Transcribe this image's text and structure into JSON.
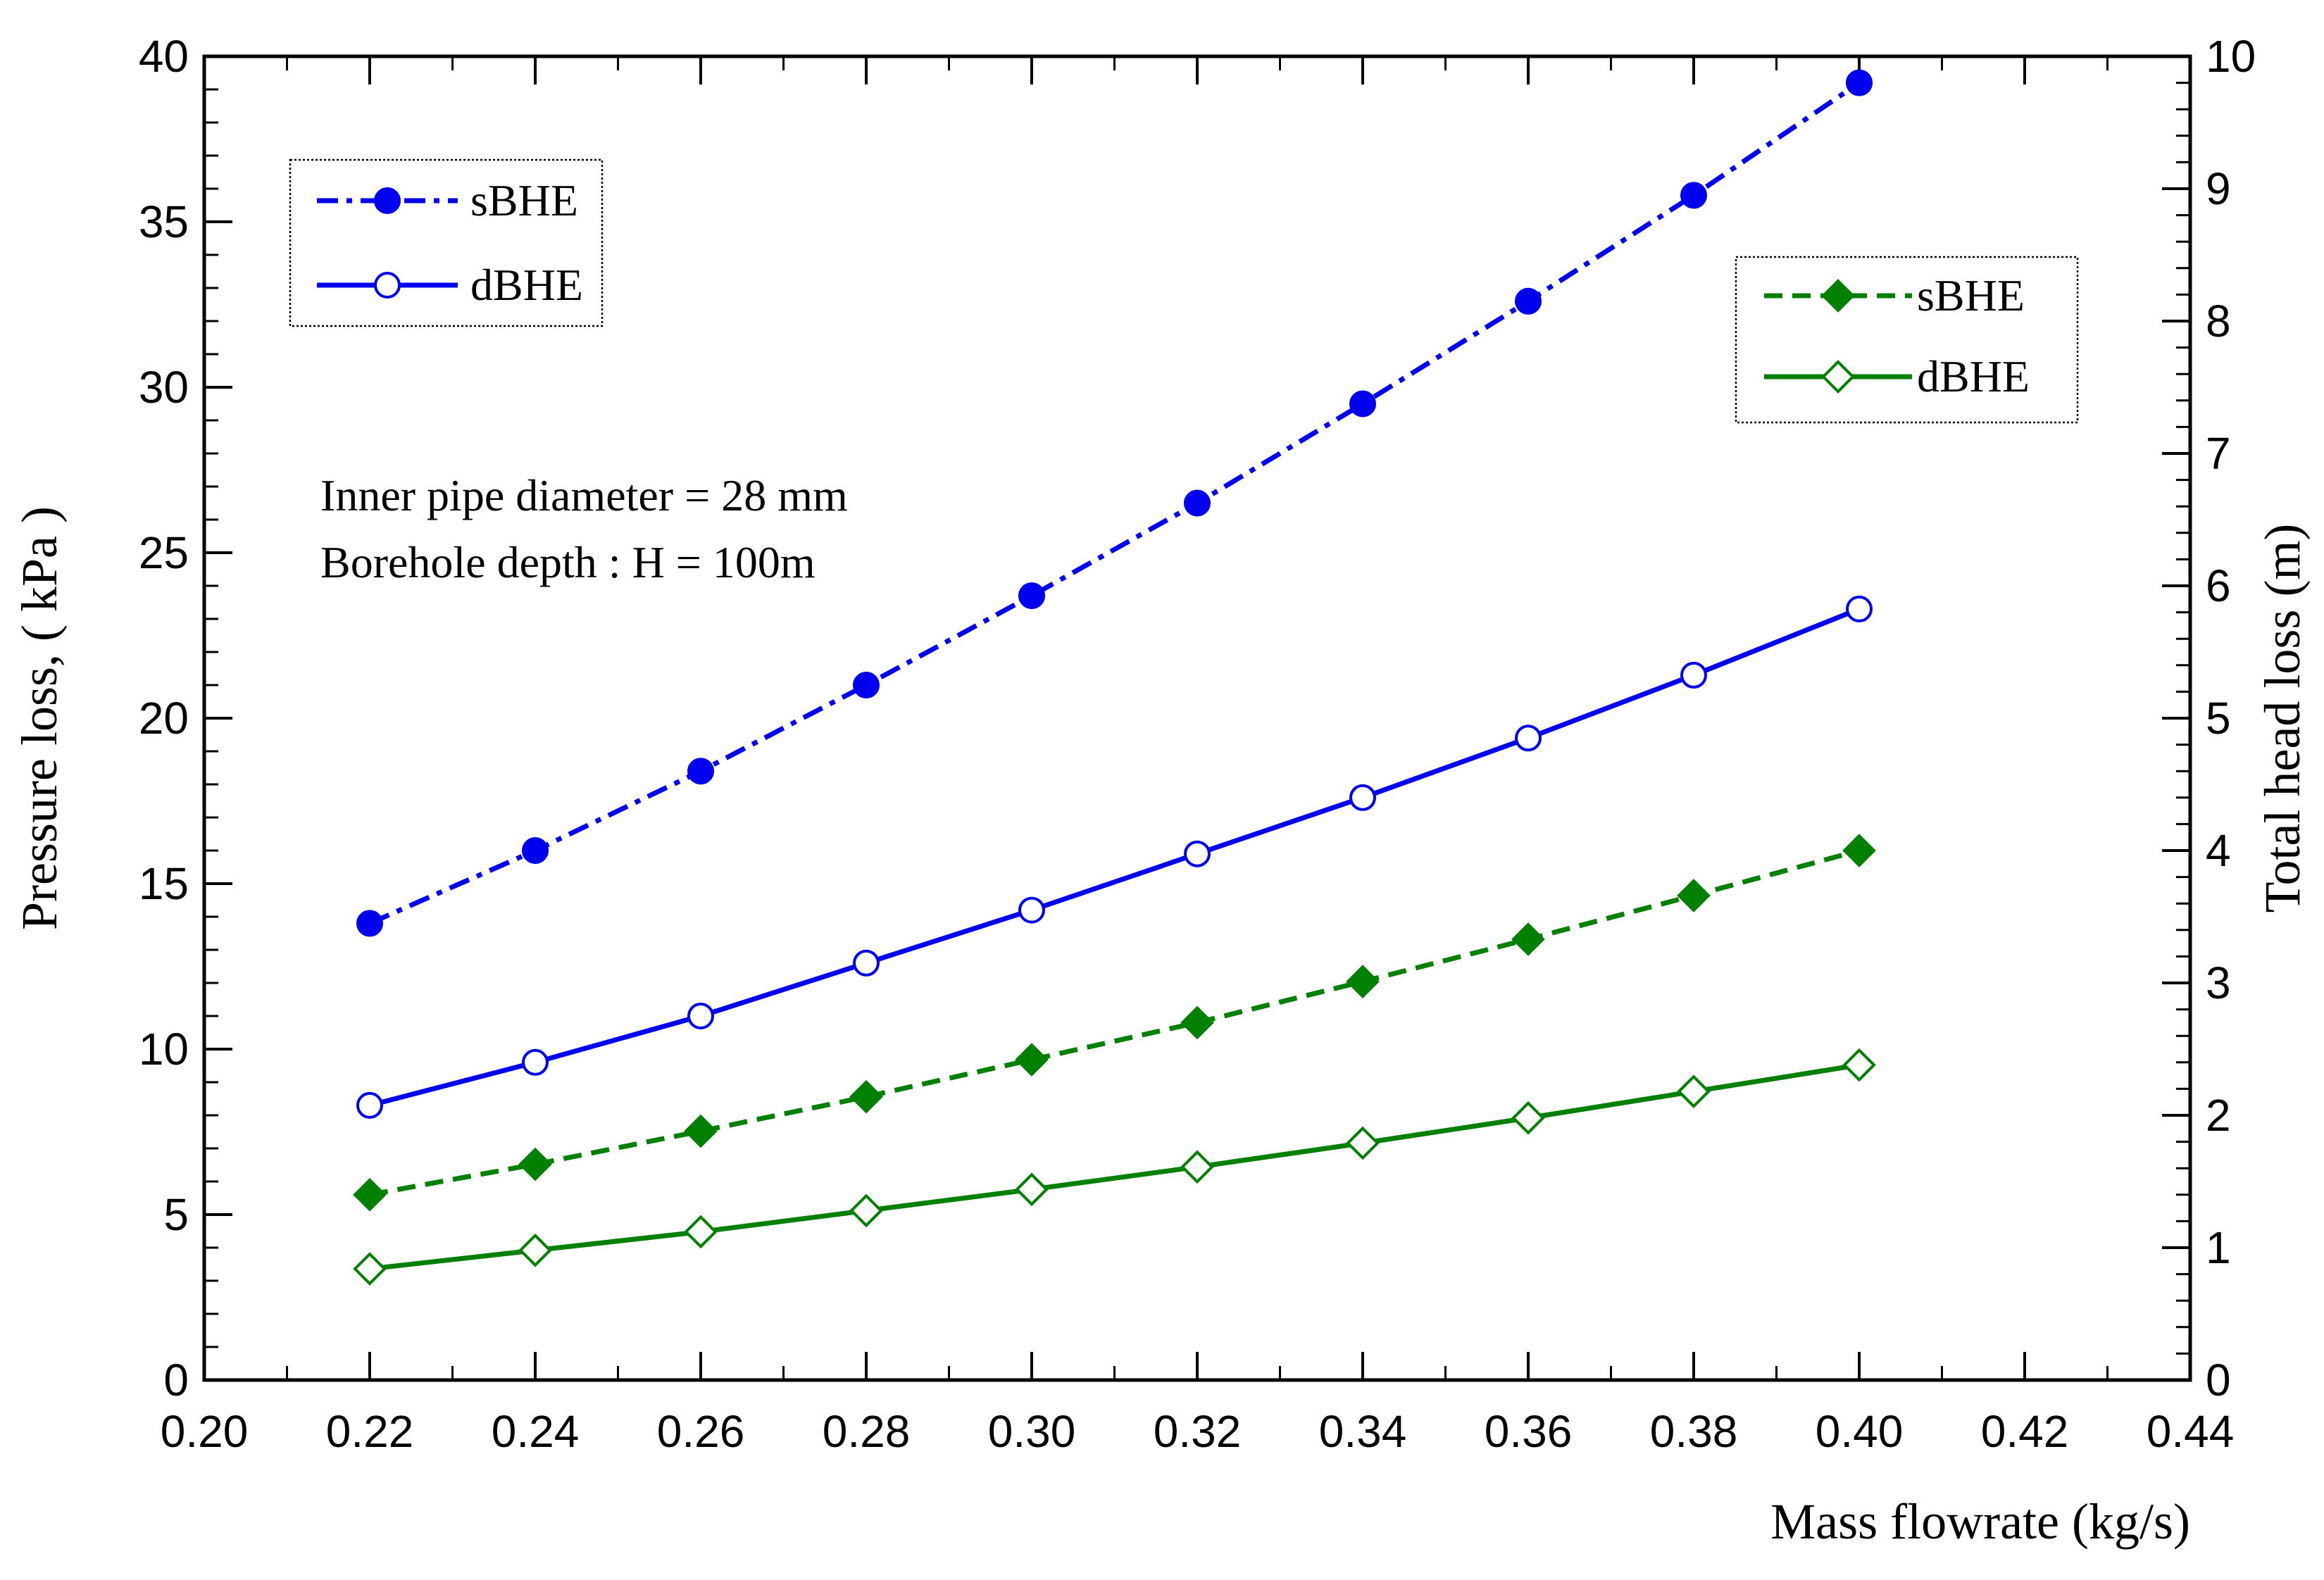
{
  "chart_data": {
    "type": "line",
    "xlabel": "Mass flowrate (kg/s)",
    "ylabel": "Pressure loss, ( kPa )",
    "y2label": "Total head loss (m)",
    "xlim": [
      0.2,
      0.44
    ],
    "ylim": [
      0,
      40
    ],
    "y2lim": [
      0,
      10
    ],
    "x_ticks": [
      "0.20",
      "0.22",
      "0.24",
      "0.26",
      "0.28",
      "0.30",
      "0.32",
      "0.34",
      "0.36",
      "0.38",
      "0.40",
      "0.42",
      "0.44"
    ],
    "y_ticks": [
      "0",
      "5",
      "10",
      "15",
      "20",
      "25",
      "30",
      "35",
      "40"
    ],
    "y2_ticks": [
      "0",
      "1",
      "2",
      "3",
      "4",
      "5",
      "6",
      "7",
      "8",
      "9",
      "10"
    ],
    "grid": false,
    "x": [
      0.22,
      0.24,
      0.26,
      0.28,
      0.3,
      0.32,
      0.34,
      0.36,
      0.38,
      0.4
    ],
    "series": [
      {
        "name": "sBHE",
        "axis": "left",
        "color": "#0000ee",
        "line": "dash-dot",
        "marker": "filled-circle",
        "values": [
          13.8,
          16.0,
          18.4,
          21.0,
          23.7,
          26.5,
          29.5,
          32.6,
          35.8,
          39.2
        ]
      },
      {
        "name": "dBHE",
        "axis": "left",
        "color": "#0000ee",
        "line": "solid",
        "marker": "open-circle",
        "values": [
          8.3,
          9.6,
          11.0,
          12.6,
          14.2,
          15.9,
          17.6,
          19.4,
          21.3,
          23.3
        ]
      },
      {
        "name": "sBHE",
        "axis": "right",
        "color": "#008000",
        "line": "dashed",
        "marker": "filled-diamond",
        "values": [
          1.4,
          1.63,
          1.88,
          2.14,
          2.42,
          2.7,
          3.01,
          3.33,
          3.66,
          4.0
        ]
      },
      {
        "name": "dBHE",
        "axis": "right",
        "color": "#008000",
        "line": "solid",
        "marker": "open-diamond",
        "values": [
          0.84,
          0.98,
          1.12,
          1.28,
          1.44,
          1.61,
          1.79,
          1.98,
          2.18,
          2.38
        ]
      }
    ],
    "legends": [
      {
        "position": "top-left",
        "entries": [
          "sBHE",
          "dBHE"
        ]
      },
      {
        "position": "top-right",
        "entries": [
          "sBHE",
          "dBHE"
        ]
      }
    ],
    "annotations": [
      "Inner pipe diameter = 28 mm",
      "Borehole depth : H = 100m"
    ]
  }
}
